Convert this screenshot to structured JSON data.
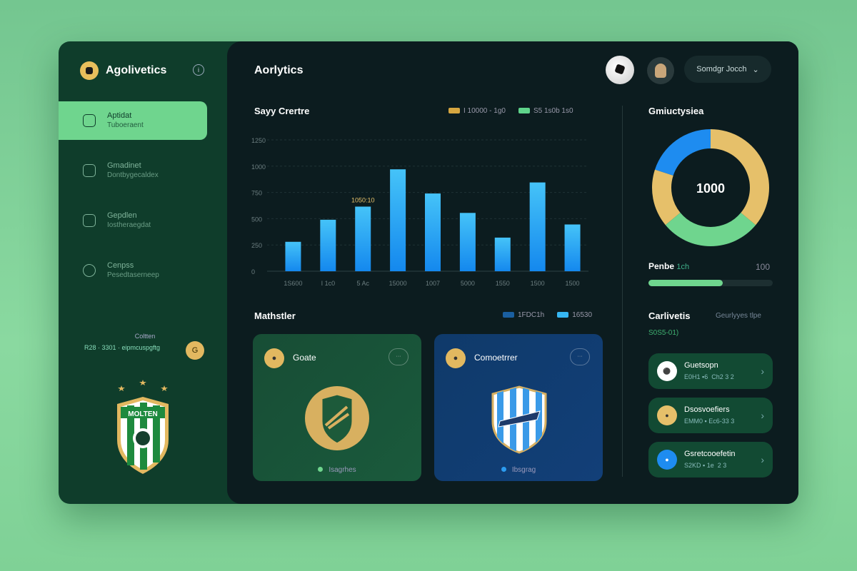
{
  "app": {
    "name": "Agolivetics",
    "info_icon": "info-icon"
  },
  "sidebar": {
    "items": [
      {
        "label": "Aptidat",
        "sub": "Tuboeraent",
        "icon": "dashboard-icon",
        "active": true
      },
      {
        "label": "Gmadinet",
        "sub": "Dontbygecaldex",
        "icon": "chart-icon"
      },
      {
        "label": "Gepdlen",
        "sub": "Iostheraegdat",
        "icon": "check-icon"
      },
      {
        "label": "Cenpss",
        "sub": "Pesedtaserneep",
        "icon": "ball-icon"
      }
    ],
    "footer_title": "Coltten",
    "footer_text": "R28 · 3301 ·  eipmcuspgftg",
    "footer_btn": "G",
    "crest_text": "MOLTEN"
  },
  "header": {
    "title": "Aorlytics",
    "user_label": "Somdgr Jocch"
  },
  "sales_chart": {
    "title": "Sayy Crertre",
    "legend": [
      {
        "label": "I  10000 - 1g0",
        "color": "#d6a640"
      },
      {
        "label": "S5   1s0b 1s0",
        "color": "#5fd38a"
      }
    ]
  },
  "chart_data": {
    "type": "bar",
    "categories": [
      "1S600",
      "I 1c0",
      "5 Ac",
      "15000",
      "1007",
      "5000",
      "1550",
      "1500",
      "1500"
    ],
    "values": [
      280,
      490,
      615,
      970,
      740,
      555,
      320,
      845,
      445
    ],
    "yticks": [
      "0",
      "250",
      "500",
      "750",
      "1000",
      "1250"
    ],
    "ylim": [
      0,
      1250
    ],
    "annotation": "1050:10",
    "annotation_index": 2,
    "grid": true,
    "bar_color": "#1e9cf0"
  },
  "matches": {
    "title": "Mathstler",
    "legend": [
      {
        "label": "1FDC1h",
        "color": "#1a5fa0"
      },
      {
        "label": "16530",
        "color": "#36b6f2"
      }
    ],
    "cards": [
      {
        "name": "Goate",
        "button": "···",
        "footer": "Isagrhes",
        "dot_color": "#6fd58e"
      },
      {
        "name": "Comoetrrer",
        "button": "···",
        "footer": "Ibsgrag",
        "dot_color": "#2c9cf0"
      }
    ]
  },
  "composition": {
    "title": "Gmiuctysiea",
    "center": "1000",
    "segments": [
      {
        "value": 36,
        "color": "#e6c06a"
      },
      {
        "value": 28,
        "color": "#6fd58e"
      },
      {
        "value": 16,
        "color": "#e6c06a"
      },
      {
        "value": 20,
        "color": "#1e8cf0"
      }
    ]
  },
  "progress": {
    "label": "Penbe",
    "sub": "1ch",
    "max_label": "100",
    "value": 0.6
  },
  "activity": {
    "title": "Carlivetis",
    "subtitle": "Geurlyyes tlpe",
    "code": "S0S5-01)",
    "items": [
      {
        "name": "Guetsopn",
        "meta": "E0H1   ▪6  Ch2 3 2",
        "icon": "soccer-ball-icon",
        "color": "#ffffff"
      },
      {
        "name": "Dsosvoefiers",
        "meta": "EMM0   ▪ Ec6-33 3",
        "icon": "gold-badge-icon",
        "color": "#e6c06a"
      },
      {
        "name": "Gsretcooefetin",
        "meta": "S2KD   ▪ 1e  2 3",
        "icon": "blue-badge-icon",
        "color": "#1e8cf0"
      }
    ]
  }
}
